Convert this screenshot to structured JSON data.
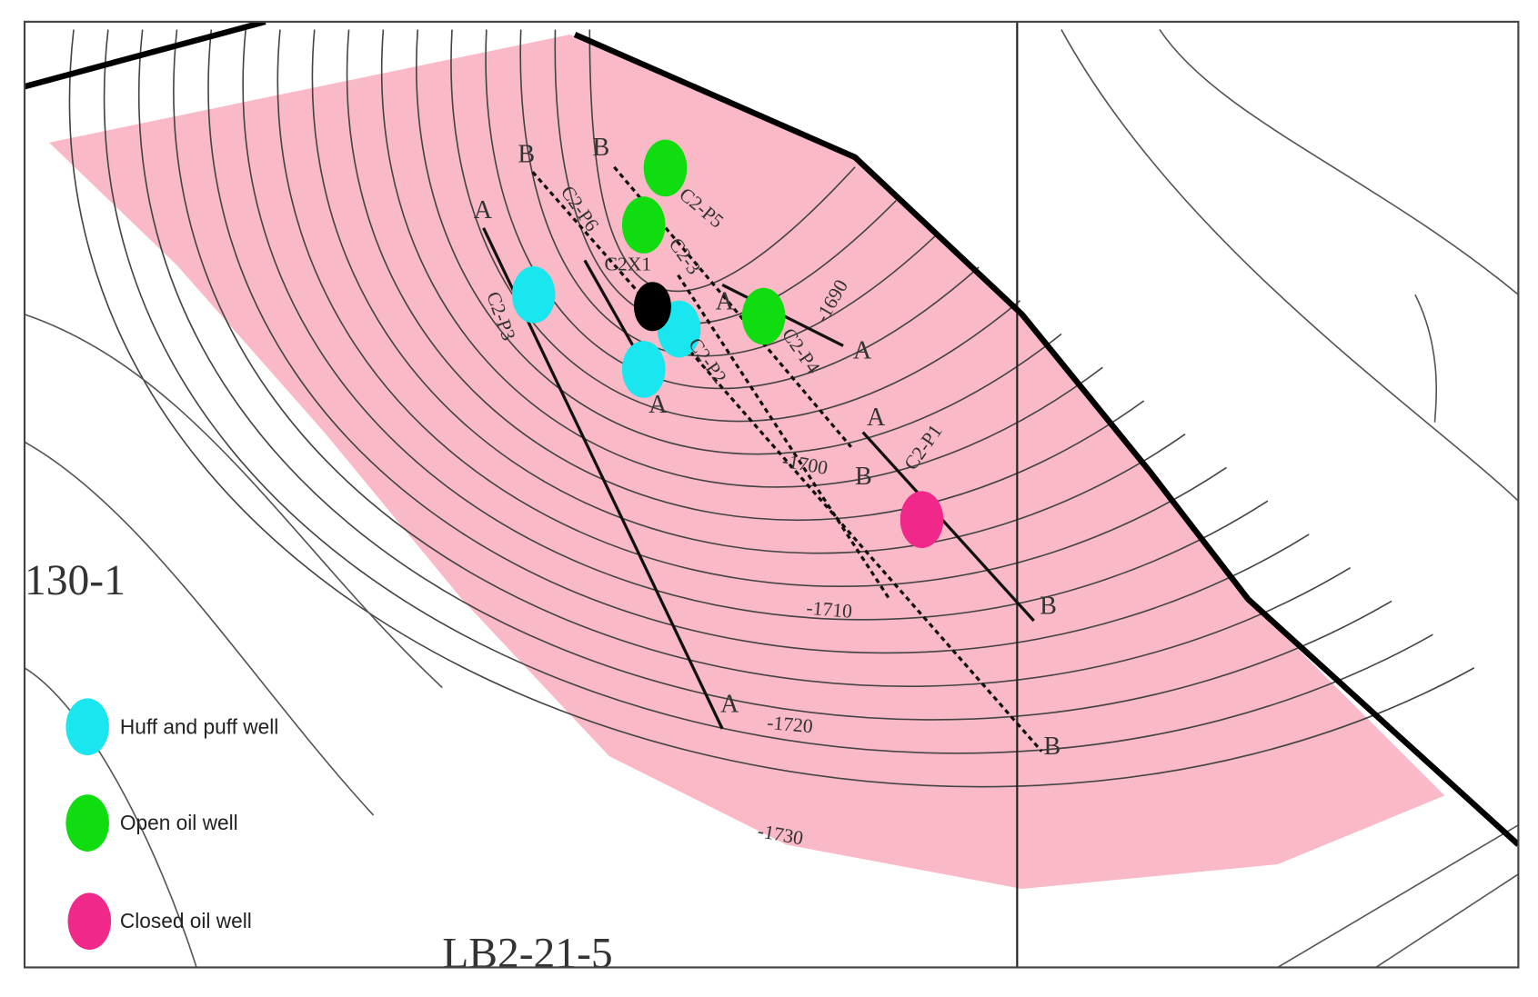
{
  "legend": {
    "items": [
      "Huff and puff well",
      "Open oil well",
      "Closed oil well"
    ]
  },
  "wells": [
    "C2-P5",
    "C2-P6",
    "C2X1",
    "C2-3",
    "C2-P3",
    "C2-P2",
    "C2-P4",
    "C2-P1"
  ],
  "contours": [
    "-1690",
    "-1700",
    "-1710",
    "-1720",
    "-1730"
  ],
  "blocks": [
    "130-1",
    "LB2-21-5"
  ],
  "section_ends": [
    "A",
    "A",
    "B",
    "B",
    "B",
    "B",
    "A",
    "A",
    "A",
    "B",
    "A"
  ]
}
